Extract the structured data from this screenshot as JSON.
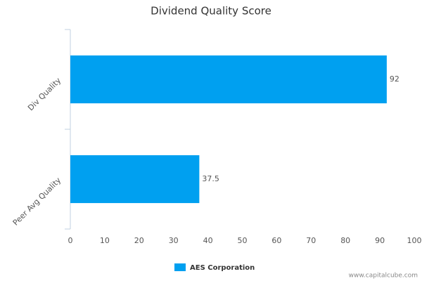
{
  "chart_data": {
    "type": "bar",
    "orientation": "horizontal",
    "title": "Dividend Quality Score",
    "categories": [
      "Div Quality",
      "Peer Avg Quality"
    ],
    "series": [
      {
        "name": "AES Corporation",
        "color": "#00a0f0",
        "values": [
          92,
          37.5
        ]
      }
    ],
    "xlim": [
      0,
      100
    ],
    "xticks": [
      0,
      10,
      20,
      30,
      40,
      50,
      60,
      70,
      80,
      90,
      100
    ],
    "grid": false,
    "legend": "bottom",
    "watermark": "www.capitalcube.com"
  }
}
